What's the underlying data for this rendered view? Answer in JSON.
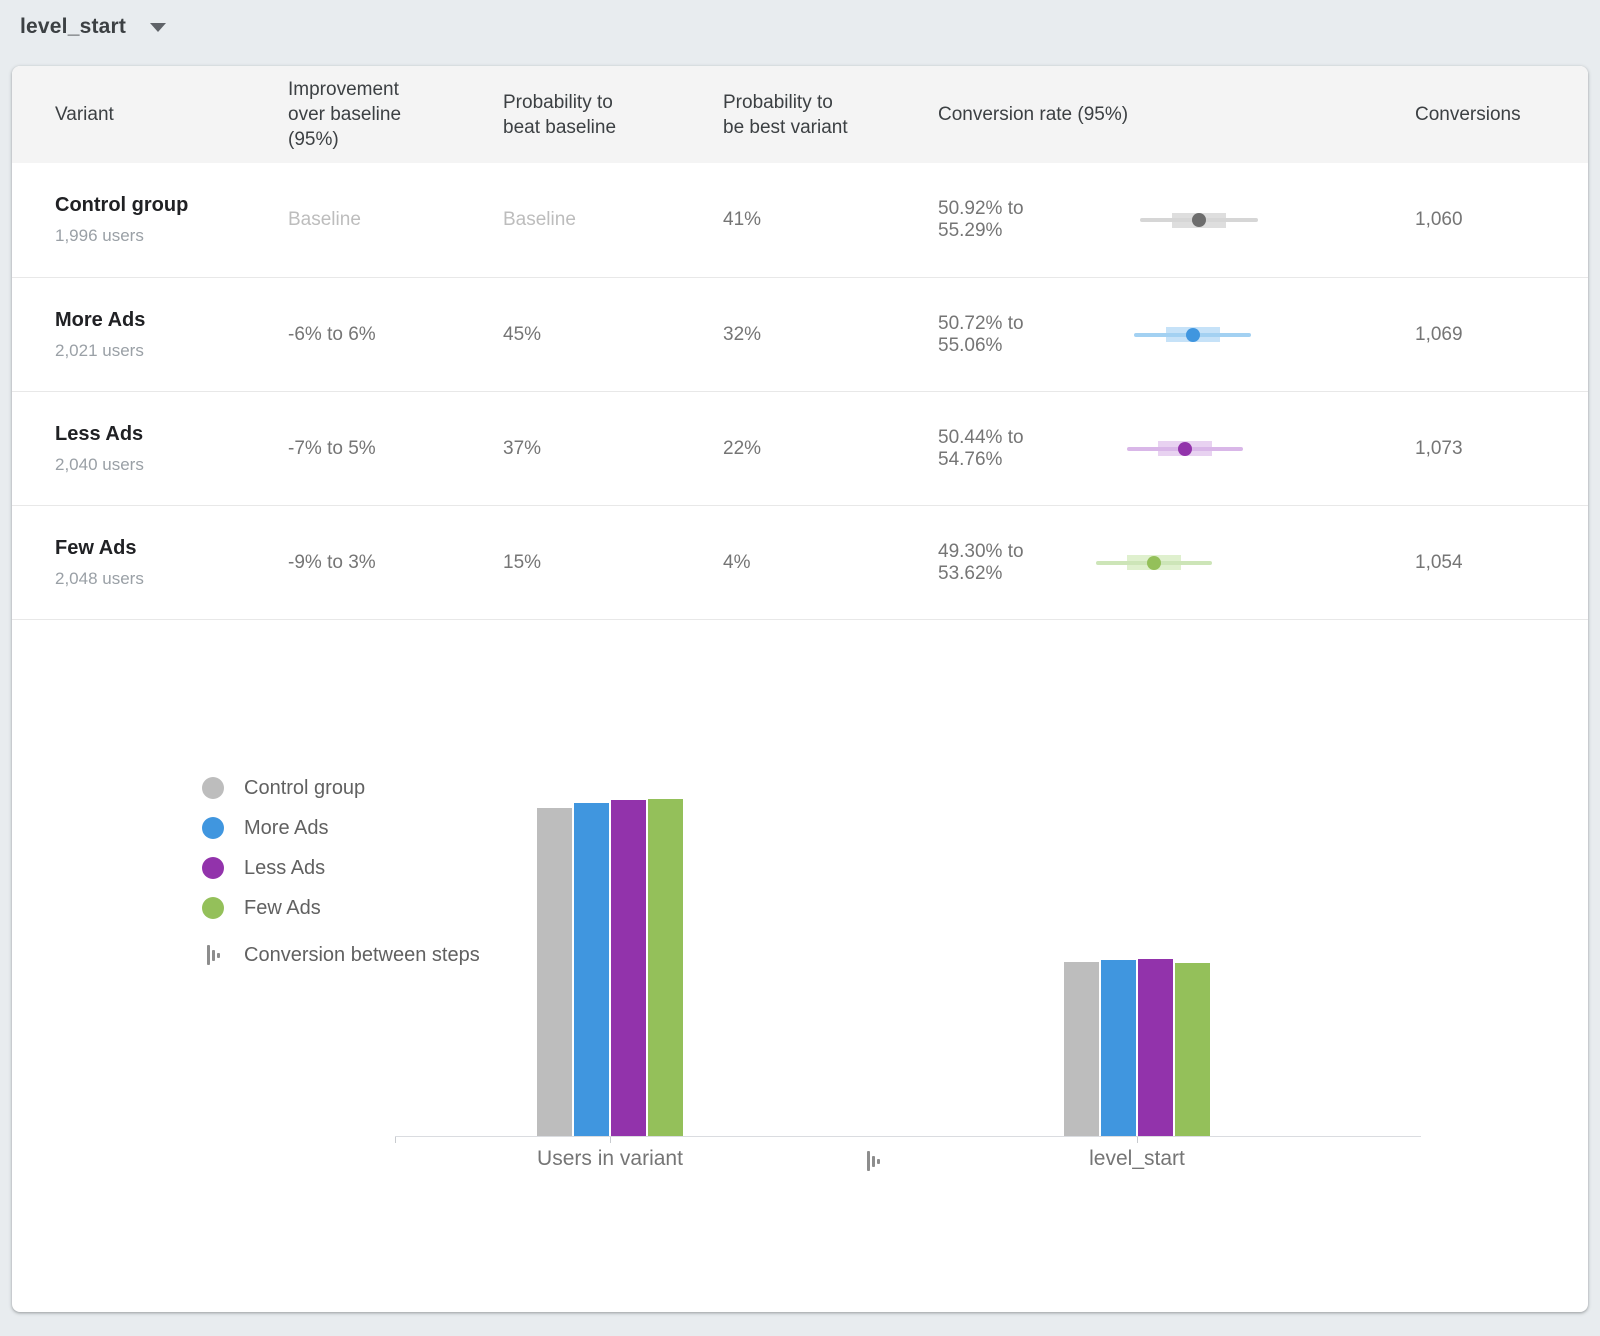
{
  "toolbar": {
    "metric_selector_value": "level_start"
  },
  "table": {
    "columns": [
      "Variant",
      "Improvement over baseline (95%)",
      "Probability to beat baseline",
      "Probability to be best variant",
      "Conversion rate (95%)",
      "Conversions"
    ],
    "rows": [
      {
        "variant": "Control group",
        "users": "1,996 users",
        "improvement": "Baseline",
        "prob_beat_baseline": "Baseline",
        "prob_best_variant": "41%",
        "conversion_rate": "50.92% to 55.29%",
        "ci_low": 50.92,
        "ci_high": 55.29,
        "conversions": "1,060",
        "interval_colors": {
          "whisker": "#d6d6d6",
          "box": "#dedede",
          "dot": "#6d6d6d"
        }
      },
      {
        "variant": "More Ads",
        "users": "2,021 users",
        "improvement": "-6% to 6%",
        "prob_beat_baseline": "45%",
        "prob_best_variant": "32%",
        "conversion_rate": "50.72% to 55.06%",
        "ci_low": 50.72,
        "ci_high": 55.06,
        "conversions": "1,069",
        "interval_colors": {
          "whisker": "#a3d1f2",
          "box": "#c6e2f8",
          "dot": "#4096df"
        }
      },
      {
        "variant": "Less Ads",
        "users": "2,040 users",
        "improvement": "-7% to 5%",
        "prob_beat_baseline": "37%",
        "prob_best_variant": "22%",
        "conversion_rate": "50.44% to 54.76%",
        "ci_low": 50.44,
        "ci_high": 54.76,
        "conversions": "1,073",
        "interval_colors": {
          "whisker": "#d9b7e8",
          "box": "#e8d2f1",
          "dot": "#9233ab"
        }
      },
      {
        "variant": "Few Ads",
        "users": "2,048 users",
        "improvement": "-9% to 3%",
        "prob_beat_baseline": "15%",
        "prob_best_variant": "4%",
        "conversion_rate": "49.30% to 53.62%",
        "ci_low": 49.3,
        "ci_high": 53.62,
        "conversions": "1,054",
        "interval_colors": {
          "whisker": "#cde5b8",
          "box": "#dff0ce",
          "dot": "#94c05a"
        }
      }
    ]
  },
  "chart_data": {
    "type": "bar",
    "categories": [
      "Users in variant",
      "level_start"
    ],
    "series": [
      {
        "name": "Control group",
        "color": "#bdbdbd",
        "values": [
          1996,
          1060
        ]
      },
      {
        "name": "More Ads",
        "color": "#4096df",
        "values": [
          2021,
          1069
        ]
      },
      {
        "name": "Less Ads",
        "color": "#9233ab",
        "values": [
          2040,
          1073
        ]
      },
      {
        "name": "Few Ads",
        "color": "#94c05a",
        "values": [
          2048,
          1054
        ]
      }
    ],
    "legend_extra_label": "Conversion between steps",
    "ylim": [
      0,
      2048
    ],
    "grid": false,
    "legend_position": "left"
  }
}
